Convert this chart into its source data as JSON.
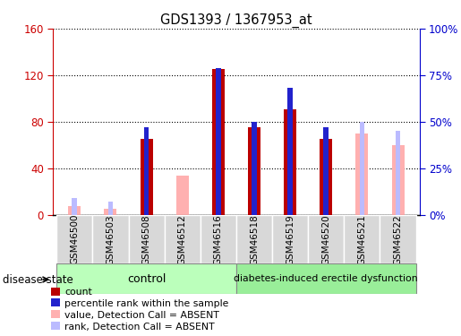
{
  "title": "GDS1393 / 1367953_at",
  "samples": [
    "GSM46500",
    "GSM46503",
    "GSM46508",
    "GSM46512",
    "GSM46516",
    "GSM46518",
    "GSM46519",
    "GSM46520",
    "GSM46521",
    "GSM46522"
  ],
  "count": [
    null,
    null,
    65,
    null,
    125,
    75,
    91,
    65,
    null,
    null
  ],
  "percentile_rank": [
    null,
    null,
    47,
    null,
    79,
    50,
    68,
    47,
    null,
    null
  ],
  "value_absent": [
    8,
    5,
    null,
    34,
    null,
    null,
    null,
    null,
    70,
    60
  ],
  "rank_absent": [
    9,
    7,
    null,
    null,
    null,
    null,
    null,
    null,
    50,
    45
  ],
  "left_ylim": [
    0,
    160
  ],
  "right_ylim": [
    0,
    100
  ],
  "left_yticks": [
    0,
    40,
    80,
    120,
    160
  ],
  "right_yticks": [
    0,
    25,
    50,
    75,
    100
  ],
  "left_yticklabels": [
    "0",
    "40",
    "80",
    "120",
    "160"
  ],
  "right_yticklabels": [
    "0%",
    "25%",
    "50%",
    "75%",
    "100%"
  ],
  "colors": {
    "count": "#BB0000",
    "percentile_rank": "#2222CC",
    "value_absent": "#FFB0B0",
    "rank_absent": "#BBBBFF",
    "group_control": "#BBFFBB",
    "group_disease": "#99EE99",
    "tick_label_bg": "#D8D8D8",
    "axis_left": "#CC0000",
    "axis_right": "#0000CC"
  },
  "control_indices": [
    0,
    1,
    2,
    3,
    4
  ],
  "disease_indices": [
    5,
    6,
    7,
    8,
    9
  ],
  "disease_state_label": "disease state",
  "group1_label": "control",
  "group2_label": "diabetes-induced erectile dysfunction",
  "legend": [
    {
      "label": "count",
      "color": "#BB0000"
    },
    {
      "label": "percentile rank within the sample",
      "color": "#2222CC"
    },
    {
      "label": "value, Detection Call = ABSENT",
      "color": "#FFB0B0"
    },
    {
      "label": "rank, Detection Call = ABSENT",
      "color": "#BBBBFF"
    }
  ]
}
